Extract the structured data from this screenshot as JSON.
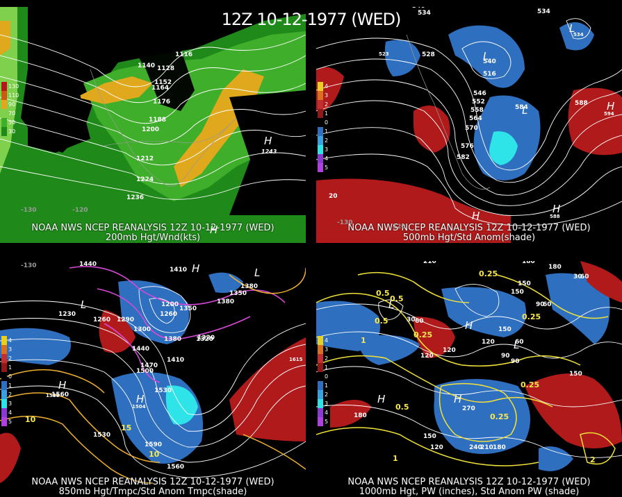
{
  "title": "12Z 10-12-1977 (WED)",
  "colors": {
    "jet_light": "#7fd04c",
    "jet_mid": "#3fae2a",
    "jet_dark": "#1f8a1a",
    "jet_core": "#e0a81c",
    "jet_max": "#c85a12",
    "pos_anom": "#b01a1a",
    "neg_anom": "#2f6fc0",
    "neg_anom_strong": "#2ee4e8",
    "contour": "#ffffff",
    "pw_contour": "#f0e23a",
    "temp_contour": "#d848d8",
    "temp_warm": "#f0b030",
    "coast": "#9a9a9a"
  },
  "panels": [
    {
      "id": "p1",
      "caption1": "NOAA NWS NCEP REANALYSIS 12Z 10-12-1977 (WED)",
      "caption2": "200mb Hgt/Wnd(kts)",
      "colorbar": [
        "130",
        "110",
        "90",
        "70",
        "50",
        "30"
      ],
      "labels": [
        "1116",
        "1140",
        "1128",
        "1152",
        "1164",
        "1176",
        "1188",
        "1200",
        "1212",
        "1224",
        "1236",
        "1243",
        "-130",
        "-120"
      ],
      "symbols": [
        "H",
        "H"
      ]
    },
    {
      "id": "p2",
      "caption1": "NOAA NWS NCEP REANALYSIS 12Z 10-12-1977 (WED)",
      "caption2": "500mb Hgt/Std Anom(shade)",
      "colorbar": [
        "4",
        "3",
        "2",
        "1",
        "0",
        "1",
        "2",
        "3",
        "4",
        "5"
      ],
      "labels": [
        "540",
        "534",
        "534",
        "534",
        "528",
        "516",
        "540",
        "546",
        "552",
        "558",
        "564",
        "570",
        "576",
        "582",
        "588",
        "594",
        "584",
        "523",
        "588",
        "-130",
        "-120",
        "20"
      ],
      "symbols": [
        "L",
        "L",
        "L",
        "H",
        "H",
        "H"
      ]
    },
    {
      "id": "p3",
      "caption1": "NOAA NWS NCEP REANALYSIS 12Z 10-12-1977 (WED)",
      "caption2": "850mb Hgt/Tmpc/Std Anom Tmpc(shade)",
      "colorbar": [
        "4",
        "3",
        "2",
        "1",
        "0",
        "1",
        "2",
        "3",
        "4",
        "5"
      ],
      "labels": [
        "1470",
        "1440",
        "1410",
        "1380",
        "1350",
        "1320",
        "1290",
        "1260",
        "1230",
        "1200",
        "1440",
        "1470",
        "1500",
        "1530",
        "1560",
        "1590",
        "1530",
        "1560",
        "1410",
        "1380",
        "1320",
        "1260",
        "1350",
        "1380",
        "1300",
        "1615",
        "1504",
        "1588",
        "-130",
        "10",
        "15",
        "10"
      ],
      "symbols": [
        "H",
        "L",
        "L",
        "H",
        "H"
      ]
    },
    {
      "id": "p4",
      "caption1": "NOAA NWS NCEP REANALYSIS 12Z 10-12-1977 (WED)",
      "caption2": "1000mb Hgt, PW (inches), Std Anom PW (shade)",
      "colorbar": [
        "4",
        "3",
        "2",
        "1",
        "0",
        "1",
        "2",
        "3",
        "4",
        "5"
      ],
      "labels": [
        "210",
        "180",
        "150",
        "120",
        "90",
        "60",
        "30",
        "60",
        "90",
        "120",
        "150",
        "180",
        "210",
        "240",
        "270",
        "150",
        "180",
        "120",
        "180",
        "150",
        "90",
        "60",
        "30",
        "60",
        "120",
        "150"
      ],
      "pw_labels": [
        "0.5",
        "0.25",
        "0.25",
        "0.5",
        "0.5",
        "0.25",
        "1",
        "0.25",
        "0.25",
        "0.5",
        "2",
        "1"
      ],
      "symbols": [
        "L",
        "H",
        "H",
        "L",
        "H"
      ]
    }
  ]
}
